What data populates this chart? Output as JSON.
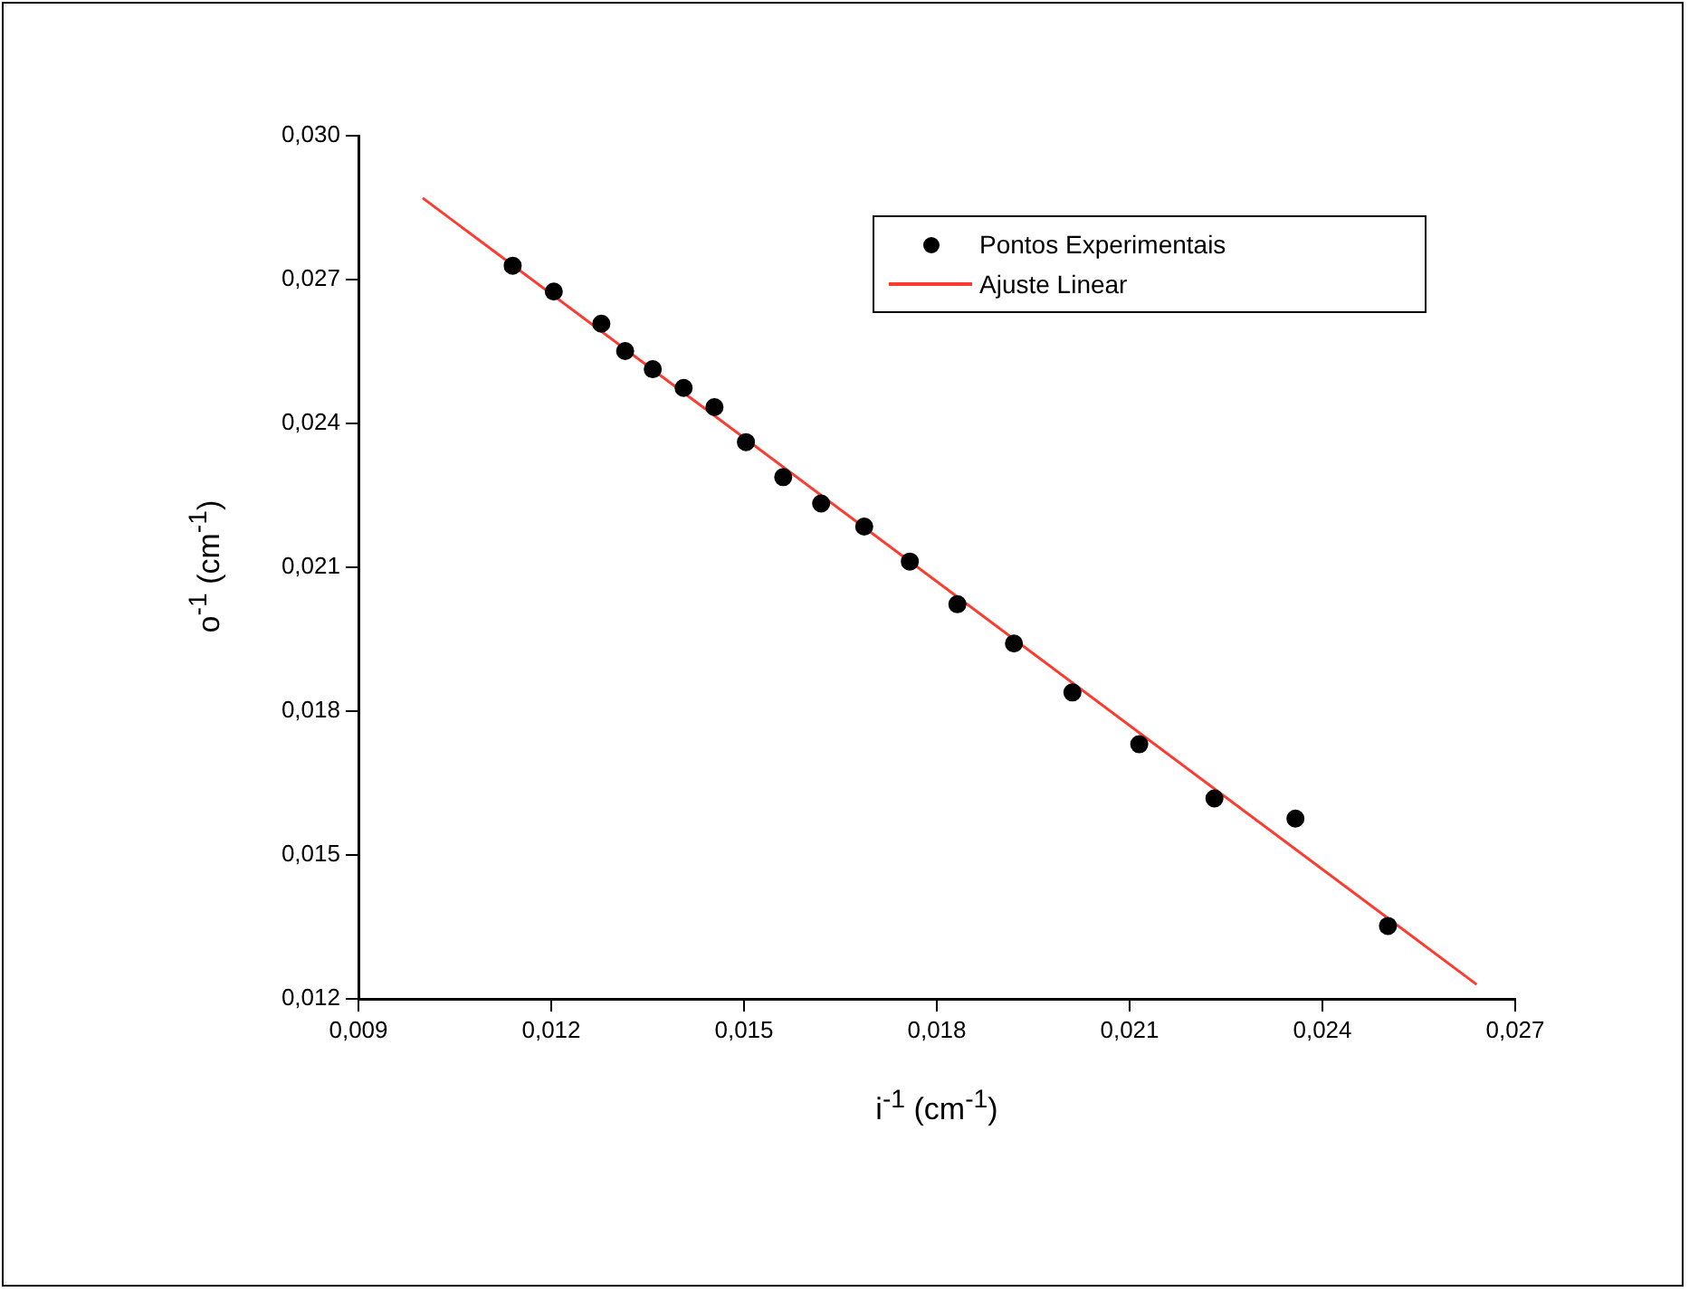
{
  "chart_data": {
    "type": "scatter",
    "xlabel": "i$^{-1}$ (cm$^{-1}$)",
    "ylabel": "o$^{-1}$ (cm$^{-1}$)",
    "xlim": [
      0.009,
      0.027
    ],
    "ylim": [
      0.012,
      0.03
    ],
    "xticks": [
      {
        "value": 0.009,
        "label": "0,009"
      },
      {
        "value": 0.012,
        "label": "0,012"
      },
      {
        "value": 0.015,
        "label": "0,015"
      },
      {
        "value": 0.018,
        "label": "0,018"
      },
      {
        "value": 0.021,
        "label": "0,021"
      },
      {
        "value": 0.024,
        "label": "0,024"
      },
      {
        "value": 0.027,
        "label": "0,027"
      }
    ],
    "yticks": [
      {
        "value": 0.012,
        "label": "0,012"
      },
      {
        "value": 0.015,
        "label": "0,015"
      },
      {
        "value": 0.018,
        "label": "0,018"
      },
      {
        "value": 0.021,
        "label": "0,021"
      },
      {
        "value": 0.024,
        "label": "0,024"
      },
      {
        "value": 0.027,
        "label": "0,027"
      },
      {
        "value": 0.03,
        "label": "0,030"
      }
    ],
    "grid": false,
    "legend": "top right",
    "series": [
      {
        "name": "Pontos Experimentais",
        "marker": "circle",
        "color": "#000000",
        "x": [
          0.0114,
          0.01204,
          0.01278,
          0.01315,
          0.01358,
          0.01406,
          0.01454,
          0.01503,
          0.01561,
          0.0162,
          0.01687,
          0.01758,
          0.01832,
          0.0192,
          0.02011,
          0.02115,
          0.02232,
          0.02358,
          0.02502
        ],
        "values": [
          0.02729,
          0.02675,
          0.02608,
          0.02551,
          0.02513,
          0.02474,
          0.02434,
          0.02361,
          0.02288,
          0.02233,
          0.02185,
          0.02112,
          0.02023,
          0.01941,
          0.01839,
          0.01731,
          0.01618,
          0.01576,
          0.01352
        ]
      },
      {
        "name": "Ajuste Linear",
        "type": "line",
        "marker": "none",
        "color": "#ff3b30",
        "x": [
          0.01,
          0.0264
        ],
        "values": [
          0.0287,
          0.0123
        ]
      }
    ]
  }
}
